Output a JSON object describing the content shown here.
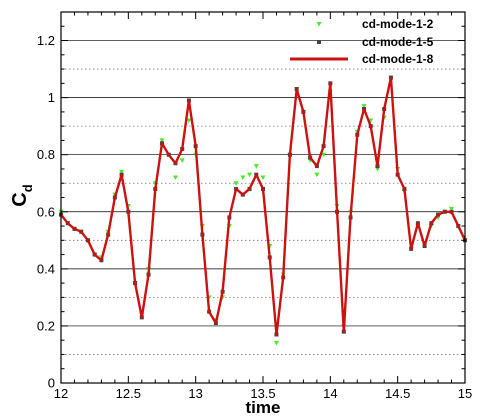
{
  "chart_data": {
    "type": "line",
    "xlabel": "time",
    "ylabel_main": "C",
    "ylabel_sub": "d",
    "xlim": [
      12,
      15
    ],
    "ylim": [
      0,
      1.3
    ],
    "x_ticks": [
      12,
      12.5,
      13,
      13.5,
      14,
      14.5,
      15
    ],
    "x_tick_labels": [
      "12",
      "12.5",
      "13",
      "13.5",
      "14",
      "14.5",
      "15"
    ],
    "y_ticks": [
      0,
      0.2,
      0.4,
      0.6,
      0.8,
      1,
      1.2
    ],
    "y_tick_labels": [
      "0",
      "0.2",
      "0.4",
      "0.6",
      "0.8",
      "1",
      "1.2"
    ],
    "grid_major_y": [
      0.2,
      0.4,
      0.6,
      0.8,
      1.0,
      1.2
    ],
    "grid_minor_y": [
      0.1,
      0.3,
      0.5,
      0.7,
      0.9,
      1.1
    ],
    "grid": true,
    "legend_position": "top-right",
    "series": [
      {
        "name": "cd-mode-1-2",
        "style": "markers-tri",
        "color": "#44ee22",
        "x": [
          12.0,
          12.05,
          12.1,
          12.15,
          12.2,
          12.25,
          12.3,
          12.35,
          12.4,
          12.45,
          12.5,
          12.55,
          12.6,
          12.65,
          12.7,
          12.75,
          12.8,
          12.85,
          12.9,
          12.95,
          13.0,
          13.05,
          13.1,
          13.15,
          13.2,
          13.25,
          13.3,
          13.35,
          13.4,
          13.45,
          13.5,
          13.55,
          13.6,
          13.65,
          13.7,
          13.75,
          13.8,
          13.85,
          13.9,
          13.95,
          14.0,
          14.05,
          14.1,
          14.15,
          14.2,
          14.25,
          14.3,
          14.35,
          14.4,
          14.45,
          14.5,
          14.55,
          14.6,
          14.65,
          14.7,
          14.75,
          14.8,
          14.85,
          14.9,
          14.95,
          15.0
        ],
        "y": [
          0.6,
          0.56,
          0.54,
          0.53,
          0.5,
          0.45,
          0.44,
          0.53,
          0.66,
          0.74,
          0.62,
          0.35,
          0.24,
          0.4,
          0.7,
          0.85,
          0.8,
          0.72,
          0.78,
          0.92,
          0.8,
          0.55,
          0.3,
          0.22,
          0.3,
          0.55,
          0.7,
          0.72,
          0.73,
          0.76,
          0.72,
          0.48,
          0.14,
          0.38,
          0.8,
          1.03,
          0.95,
          0.78,
          0.73,
          0.8,
          1.02,
          0.62,
          0.2,
          0.6,
          0.88,
          0.97,
          0.92,
          0.75,
          0.93,
          1.07,
          0.75,
          0.67,
          0.47,
          0.55,
          0.49,
          0.55,
          0.58,
          0.6,
          0.61,
          0.55,
          0.5
        ]
      },
      {
        "name": "cd-mode-1-5",
        "style": "markers-square",
        "color": "#444444",
        "x": [
          12.0,
          12.05,
          12.1,
          12.15,
          12.2,
          12.25,
          12.3,
          12.35,
          12.4,
          12.45,
          12.5,
          12.55,
          12.6,
          12.65,
          12.7,
          12.75,
          12.8,
          12.85,
          12.9,
          12.95,
          13.0,
          13.05,
          13.1,
          13.15,
          13.2,
          13.25,
          13.3,
          13.35,
          13.4,
          13.45,
          13.5,
          13.55,
          13.6,
          13.65,
          13.7,
          13.75,
          13.8,
          13.85,
          13.9,
          13.95,
          14.0,
          14.05,
          14.1,
          14.15,
          14.2,
          14.25,
          14.3,
          14.35,
          14.4,
          14.45,
          14.5,
          14.55,
          14.6,
          14.65,
          14.7,
          14.75,
          14.8,
          14.85,
          14.9,
          14.95,
          15.0
        ],
        "y": [
          0.59,
          0.56,
          0.54,
          0.53,
          0.5,
          0.45,
          0.43,
          0.52,
          0.65,
          0.73,
          0.6,
          0.35,
          0.23,
          0.38,
          0.68,
          0.84,
          0.8,
          0.77,
          0.82,
          0.99,
          0.83,
          0.52,
          0.25,
          0.21,
          0.32,
          0.58,
          0.68,
          0.66,
          0.68,
          0.73,
          0.68,
          0.44,
          0.17,
          0.37,
          0.8,
          1.03,
          0.95,
          0.79,
          0.76,
          0.83,
          1.05,
          0.6,
          0.18,
          0.58,
          0.87,
          0.96,
          0.9,
          0.76,
          0.96,
          1.07,
          0.73,
          0.68,
          0.47,
          0.56,
          0.48,
          0.56,
          0.59,
          0.6,
          0.6,
          0.55,
          0.5
        ]
      },
      {
        "name": "cd-mode-1-8",
        "style": "line",
        "color": "#cc1111",
        "x": [
          12.0,
          12.05,
          12.1,
          12.15,
          12.2,
          12.25,
          12.3,
          12.35,
          12.4,
          12.45,
          12.5,
          12.55,
          12.6,
          12.65,
          12.7,
          12.75,
          12.8,
          12.85,
          12.9,
          12.95,
          13.0,
          13.05,
          13.1,
          13.15,
          13.2,
          13.25,
          13.3,
          13.35,
          13.4,
          13.45,
          13.5,
          13.55,
          13.6,
          13.65,
          13.7,
          13.75,
          13.8,
          13.85,
          13.9,
          13.95,
          14.0,
          14.05,
          14.1,
          14.15,
          14.2,
          14.25,
          14.3,
          14.35,
          14.4,
          14.45,
          14.5,
          14.55,
          14.6,
          14.65,
          14.7,
          14.75,
          14.8,
          14.85,
          14.9,
          14.95,
          15.0
        ],
        "y": [
          0.59,
          0.56,
          0.54,
          0.53,
          0.5,
          0.45,
          0.43,
          0.52,
          0.65,
          0.73,
          0.6,
          0.35,
          0.23,
          0.38,
          0.68,
          0.84,
          0.8,
          0.77,
          0.82,
          0.99,
          0.83,
          0.52,
          0.25,
          0.21,
          0.32,
          0.58,
          0.68,
          0.66,
          0.68,
          0.73,
          0.68,
          0.44,
          0.17,
          0.37,
          0.8,
          1.03,
          0.95,
          0.79,
          0.76,
          0.83,
          1.05,
          0.6,
          0.18,
          0.58,
          0.87,
          0.96,
          0.9,
          0.76,
          0.96,
          1.07,
          0.73,
          0.68,
          0.47,
          0.56,
          0.48,
          0.56,
          0.59,
          0.6,
          0.6,
          0.55,
          0.5
        ]
      }
    ]
  }
}
